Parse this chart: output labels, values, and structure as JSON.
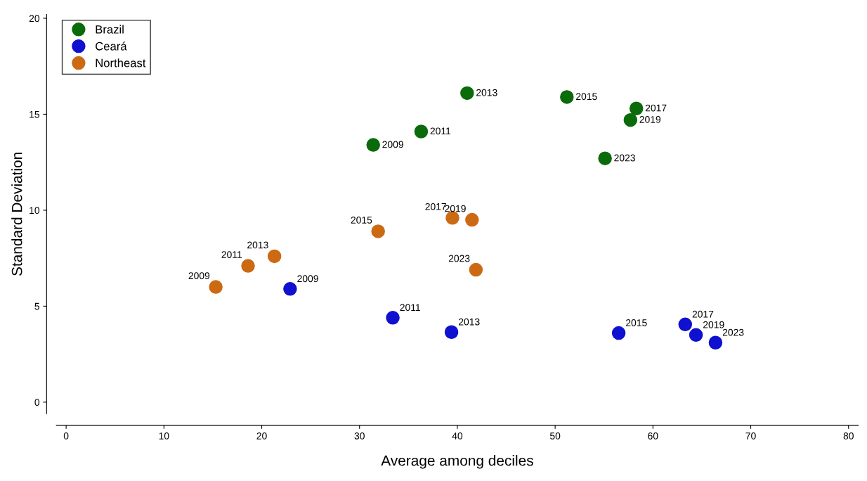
{
  "chart_data": {
    "type": "scatter",
    "xlabel": "Average among deciles",
    "ylabel": "Standard Deviation",
    "xlim": [
      -1,
      81
    ],
    "ylim": [
      -0.6,
      20.2
    ],
    "xticks": [
      0,
      10,
      20,
      30,
      40,
      50,
      60,
      70,
      80
    ],
    "yticks": [
      0,
      5,
      10,
      15,
      20
    ],
    "grid": false,
    "legend": "top left",
    "marker": "circle",
    "series": [
      {
        "name": "Brazil",
        "color": "#0b6b0b",
        "x": [
          31.4,
          36.3,
          41.0,
          51.2,
          58.3,
          57.7,
          55.1
        ],
        "values": [
          13.4,
          14.1,
          16.1,
          15.9,
          15.3,
          14.7,
          12.7
        ]
      },
      {
        "name": "Ceará",
        "color": "#1010d0",
        "x": [
          22.9,
          33.4,
          39.4,
          56.5,
          63.3,
          64.4,
          66.4
        ],
        "values": [
          5.9,
          4.4,
          3.65,
          3.6,
          4.05,
          3.5,
          3.1
        ]
      },
      {
        "name": "Northeast",
        "color": "#cc6a14",
        "x": [
          15.3,
          18.6,
          21.3,
          31.9,
          39.5,
          41.5,
          41.9
        ],
        "values": [
          6.0,
          7.1,
          7.6,
          8.9,
          9.6,
          9.5,
          6.9
        ]
      }
    ],
    "annotations": [
      {
        "text": "2009",
        "x": 31.4,
        "y": 13.4
      },
      {
        "text": "2011",
        "x": 36.3,
        "y": 14.1
      },
      {
        "text": "2013",
        "x": 41.0,
        "y": 16.1
      },
      {
        "text": "2015",
        "x": 51.2,
        "y": 15.9
      },
      {
        "text": "2017",
        "x": 58.3,
        "y": 15.3
      },
      {
        "text": "2019",
        "x": 57.7,
        "y": 14.7
      },
      {
        "text": "2023",
        "x": 55.1,
        "y": 12.7
      },
      {
        "text": "2009",
        "x": 22.9,
        "y": 5.9
      },
      {
        "text": "2011",
        "x": 33.4,
        "y": 4.4
      },
      {
        "text": "2013",
        "x": 39.4,
        "y": 3.65
      },
      {
        "text": "2015",
        "x": 56.5,
        "y": 3.6
      },
      {
        "text": "2017",
        "x": 63.3,
        "y": 4.05
      },
      {
        "text": "2019",
        "x": 64.4,
        "y": 3.5
      },
      {
        "text": "2023",
        "x": 66.4,
        "y": 3.1
      },
      {
        "text": "2009",
        "x": 15.3,
        "y": 6.0
      },
      {
        "text": "2011",
        "x": 18.6,
        "y": 7.1
      },
      {
        "text": "2013",
        "x": 21.3,
        "y": 7.6
      },
      {
        "text": "2015",
        "x": 31.9,
        "y": 8.9
      },
      {
        "text": "2017",
        "x": 39.5,
        "y": 9.6
      },
      {
        "text": "2019",
        "x": 41.5,
        "y": 9.5
      },
      {
        "text": "2023",
        "x": 41.9,
        "y": 6.9
      }
    ]
  }
}
